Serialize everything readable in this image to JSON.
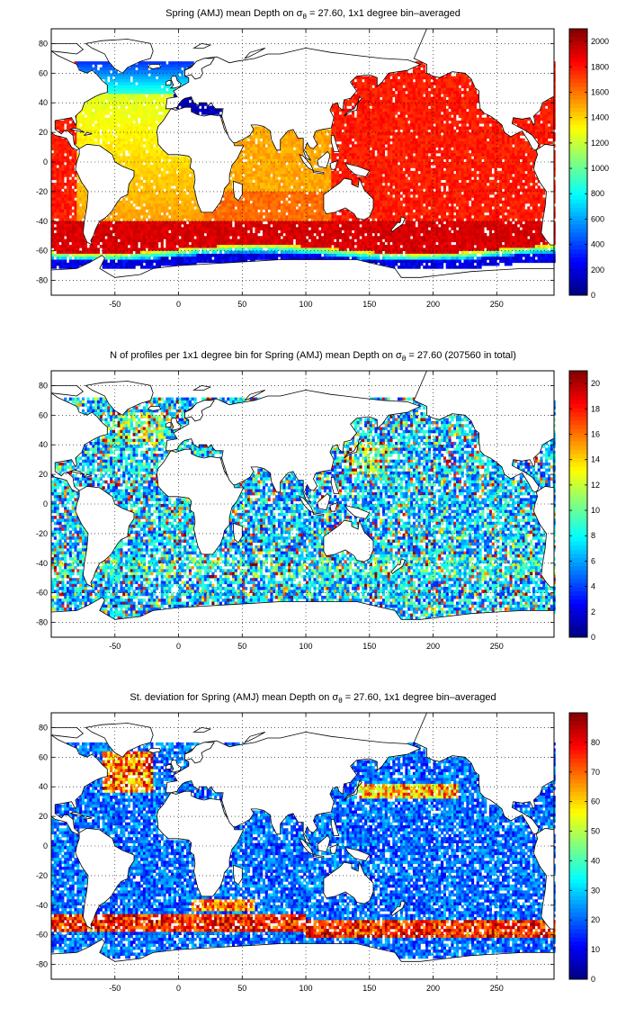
{
  "chart_data": [
    {
      "type": "heatmap",
      "title_prefix": "Spring (AMJ) mean Depth on ",
      "title_symbol": "σ",
      "title_subscript": "θ",
      "title_suffix": " = 27.60, 1x1 degree bin–averaged",
      "x_ticks": [
        "-50",
        "0",
        "50",
        "100",
        "150",
        "200",
        "250"
      ],
      "x_tick_values": [
        -50,
        0,
        50,
        100,
        150,
        200,
        250
      ],
      "y_ticks": [
        "80",
        "60",
        "40",
        "20",
        "0",
        "-20",
        "-40",
        "-60",
        "-80"
      ],
      "y_tick_values": [
        80,
        60,
        40,
        20,
        0,
        -20,
        -40,
        -60,
        -80
      ],
      "xlim": [
        -100,
        295
      ],
      "ylim": [
        -90,
        90
      ],
      "grid": true,
      "colorbar": {
        "ticks": [
          "2000",
          "1800",
          "1600",
          "1400",
          "1200",
          "1000",
          "800",
          "600",
          "400",
          "200",
          "0"
        ],
        "tick_values": [
          2000,
          1800,
          1600,
          1400,
          1200,
          1000,
          800,
          600,
          400,
          200,
          0
        ],
        "min": 0,
        "max": 2100
      },
      "colormap": "jet"
    },
    {
      "type": "heatmap",
      "title_prefix": "N of profiles per 1x1 degree bin for Spring (AMJ) mean Depth on ",
      "title_symbol": "σ",
      "title_subscript": "θ",
      "title_suffix": " = 27.60 (207560 in total)",
      "x_ticks": [
        "-50",
        "0",
        "50",
        "100",
        "150",
        "200",
        "250"
      ],
      "x_tick_values": [
        -50,
        0,
        50,
        100,
        150,
        200,
        250
      ],
      "y_ticks": [
        "80",
        "60",
        "40",
        "20",
        "0",
        "-20",
        "-40",
        "-60",
        "-80"
      ],
      "y_tick_values": [
        80,
        60,
        40,
        20,
        0,
        -20,
        -40,
        -60,
        -80
      ],
      "xlim": [
        -100,
        295
      ],
      "ylim": [
        -90,
        90
      ],
      "grid": true,
      "colorbar": {
        "ticks": [
          "20",
          "18",
          "16",
          "14",
          "12",
          "10",
          "8",
          "6",
          "4",
          "2",
          "0"
        ],
        "tick_values": [
          20,
          18,
          16,
          14,
          12,
          10,
          8,
          6,
          4,
          2,
          0
        ],
        "min": 0,
        "max": 21
      },
      "colormap": "jet"
    },
    {
      "type": "heatmap",
      "title_prefix": "St. deviation for Spring (AMJ) mean Depth on ",
      "title_symbol": "σ",
      "title_subscript": "θ",
      "title_suffix": " = 27.60, 1x1 degree bin–averaged",
      "x_ticks": [
        "-50",
        "0",
        "50",
        "100",
        "150",
        "200",
        "250"
      ],
      "x_tick_values": [
        -50,
        0,
        50,
        100,
        150,
        200,
        250
      ],
      "y_ticks": [
        "80",
        "60",
        "40",
        "20",
        "0",
        "-20",
        "-40",
        "-60",
        "-80"
      ],
      "y_tick_values": [
        80,
        60,
        40,
        20,
        0,
        -20,
        -40,
        -60,
        -80
      ],
      "xlim": [
        -100,
        295
      ],
      "ylim": [
        -90,
        90
      ],
      "grid": true,
      "colorbar": {
        "ticks": [
          "80",
          "70",
          "60",
          "50",
          "40",
          "30",
          "20",
          "10",
          "0"
        ],
        "tick_values": [
          80,
          70,
          60,
          50,
          40,
          30,
          20,
          10,
          0
        ],
        "min": 0,
        "max": 90
      },
      "colormap": "jet"
    }
  ]
}
